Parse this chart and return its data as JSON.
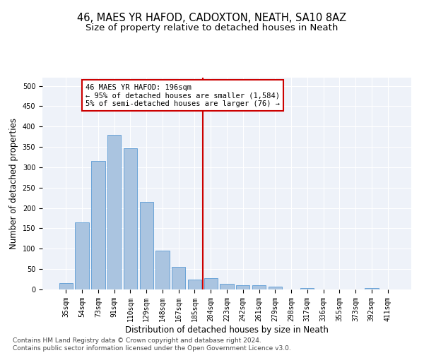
{
  "title": "46, MAES YR HAFOD, CADOXTON, NEATH, SA10 8AZ",
  "subtitle": "Size of property relative to detached houses in Neath",
  "xlabel": "Distribution of detached houses by size in Neath",
  "ylabel": "Number of detached properties",
  "categories": [
    "35sqm",
    "54sqm",
    "73sqm",
    "91sqm",
    "110sqm",
    "129sqm",
    "148sqm",
    "167sqm",
    "185sqm",
    "204sqm",
    "223sqm",
    "242sqm",
    "261sqm",
    "279sqm",
    "298sqm",
    "317sqm",
    "336sqm",
    "355sqm",
    "373sqm",
    "392sqm",
    "411sqm"
  ],
  "values": [
    15,
    165,
    315,
    380,
    347,
    215,
    95,
    56,
    24,
    28,
    14,
    11,
    10,
    7,
    0,
    4,
    0,
    0,
    0,
    4,
    0
  ],
  "bar_color": "#aac4e0",
  "bar_edge_color": "#5b9bd5",
  "vline_color": "#cc0000",
  "annotation_text": "46 MAES YR HAFOD: 196sqm\n← 95% of detached houses are smaller (1,584)\n5% of semi-detached houses are larger (76) →",
  "annotation_box_color": "#cc0000",
  "ylim": [
    0,
    520
  ],
  "yticks": [
    0,
    50,
    100,
    150,
    200,
    250,
    300,
    350,
    400,
    450,
    500
  ],
  "footnote": "Contains HM Land Registry data © Crown copyright and database right 2024.\nContains public sector information licensed under the Open Government Licence v3.0.",
  "bg_color": "#eef2f9",
  "title_fontsize": 10.5,
  "subtitle_fontsize": 9.5,
  "label_fontsize": 8.5,
  "tick_fontsize": 7,
  "footnote_fontsize": 6.5,
  "annotation_fontsize": 7.5
}
